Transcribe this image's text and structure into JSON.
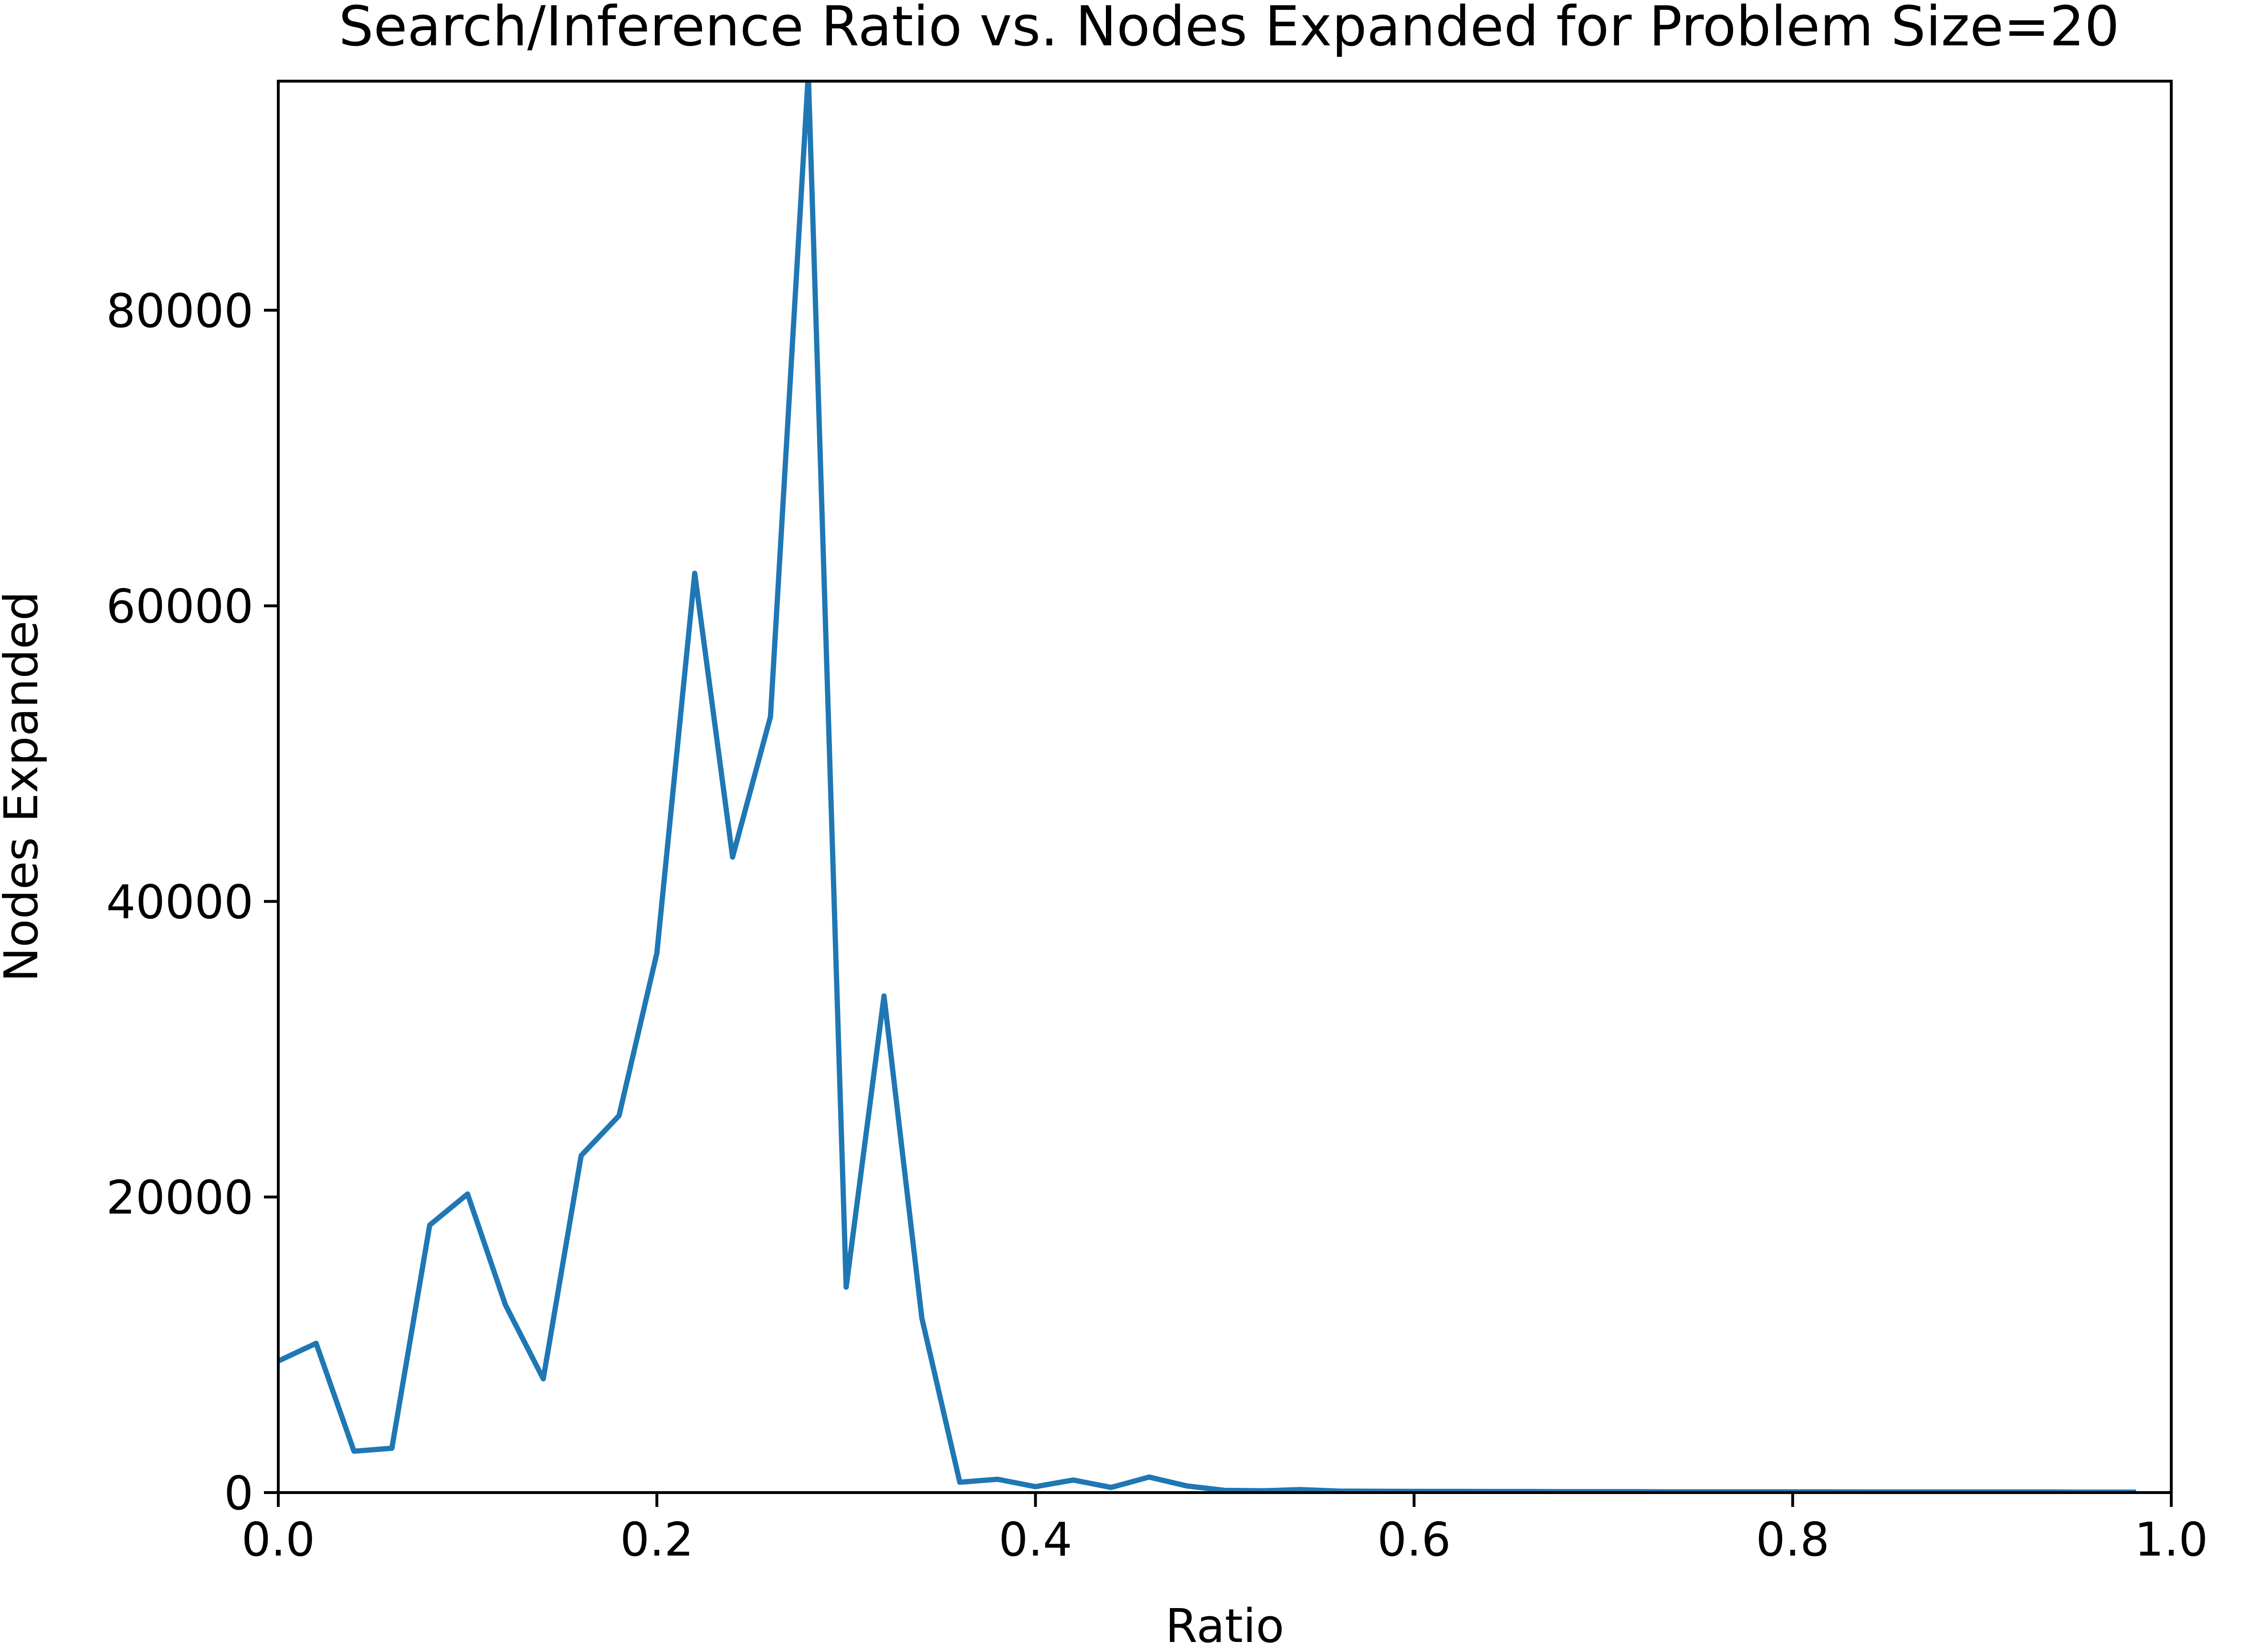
{
  "chart_data": {
    "type": "line",
    "title": "Search/Inference Ratio vs. Nodes Expanded for Problem Size=20",
    "xlabel": "Ratio",
    "ylabel": "Nodes Expanded",
    "xlim": [
      0.0,
      1.0
    ],
    "ylim": [
      0,
      95500
    ],
    "xticks": [
      {
        "value": 0.0,
        "label": "0.0"
      },
      {
        "value": 0.2,
        "label": "0.2"
      },
      {
        "value": 0.4,
        "label": "0.4"
      },
      {
        "value": 0.6,
        "label": "0.6"
      },
      {
        "value": 0.8,
        "label": "0.8"
      },
      {
        "value": 1.0,
        "label": "1.0"
      }
    ],
    "yticks": [
      {
        "value": 0,
        "label": "0"
      },
      {
        "value": 20000,
        "label": "20000"
      },
      {
        "value": 40000,
        "label": "40000"
      },
      {
        "value": 60000,
        "label": "60000"
      },
      {
        "value": 80000,
        "label": "80000"
      }
    ],
    "grid": false,
    "series": [
      {
        "color": "#1f77b4",
        "x": [
          0.0,
          0.02,
          0.04,
          0.06,
          0.08,
          0.1,
          0.12,
          0.14,
          0.16,
          0.18,
          0.2,
          0.22,
          0.24,
          0.26,
          0.28,
          0.3,
          0.32,
          0.34,
          0.36,
          0.38,
          0.4,
          0.42,
          0.44,
          0.46,
          0.48,
          0.5,
          0.52,
          0.54,
          0.56,
          0.58,
          0.6,
          0.62,
          0.64,
          0.66,
          0.68,
          0.7,
          0.72,
          0.74,
          0.76,
          0.78,
          0.8,
          0.82,
          0.84,
          0.86,
          0.88,
          0.9,
          0.92,
          0.94,
          0.96,
          0.98
        ],
        "y": [
          8900,
          10100,
          2800,
          3000,
          18100,
          20200,
          12700,
          7700,
          22800,
          25500,
          36500,
          62200,
          43000,
          52500,
          96000,
          13900,
          33600,
          11800,
          700,
          900,
          400,
          850,
          350,
          1050,
          450,
          150,
          120,
          200,
          100,
          90,
          80,
          80,
          70,
          70,
          60,
          60,
          60,
          50,
          50,
          50,
          50,
          50,
          40,
          40,
          40,
          40,
          40,
          40,
          30,
          30
        ]
      }
    ]
  }
}
